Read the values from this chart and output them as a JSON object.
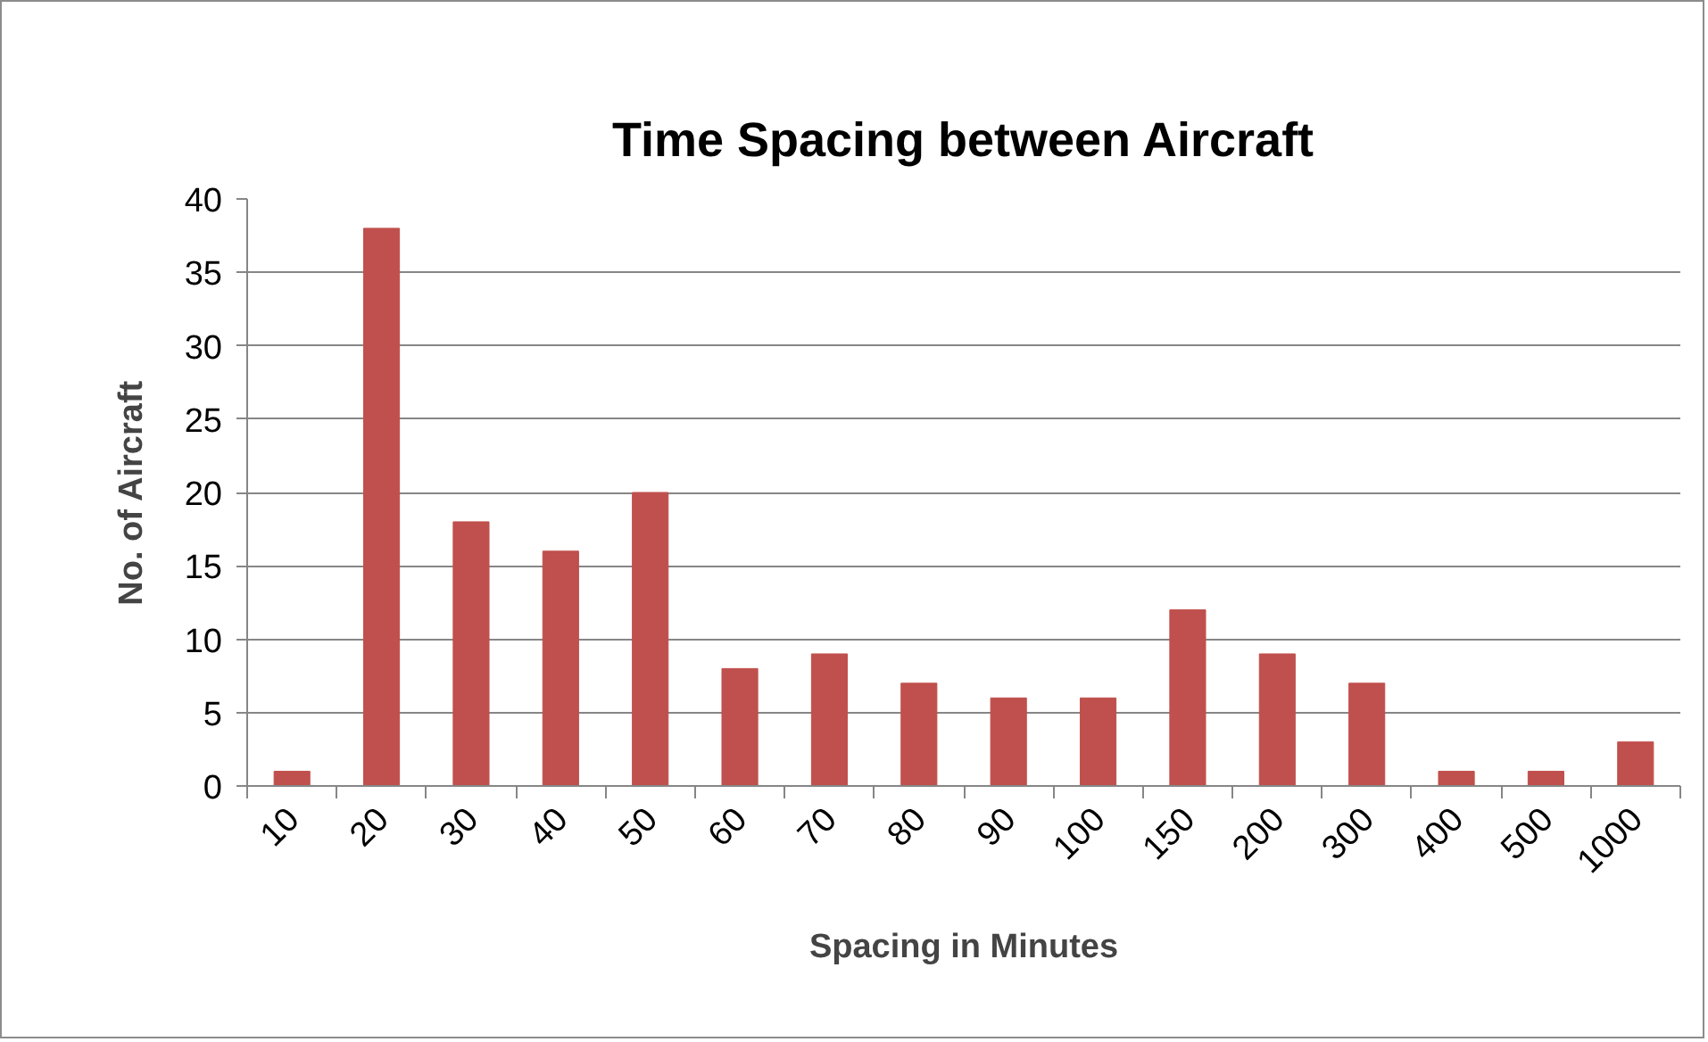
{
  "chart_data": {
    "type": "bar",
    "title": "Time Spacing between Aircraft",
    "xlabel": "Spacing in Minutes",
    "ylabel": "No. of Aircraft",
    "categories": [
      "10",
      "20",
      "30",
      "40",
      "50",
      "60",
      "70",
      "80",
      "90",
      "100",
      "150",
      "200",
      "300",
      "400",
      "500",
      "1000"
    ],
    "values": [
      1,
      38,
      18,
      16,
      20,
      8,
      9,
      7,
      6,
      6,
      12,
      9,
      7,
      1,
      1,
      3
    ],
    "color": "#c0504d",
    "ylim": [
      0,
      40
    ],
    "yticks": [
      0,
      5,
      10,
      15,
      20,
      25,
      30,
      35,
      40
    ],
    "grid": "y"
  }
}
